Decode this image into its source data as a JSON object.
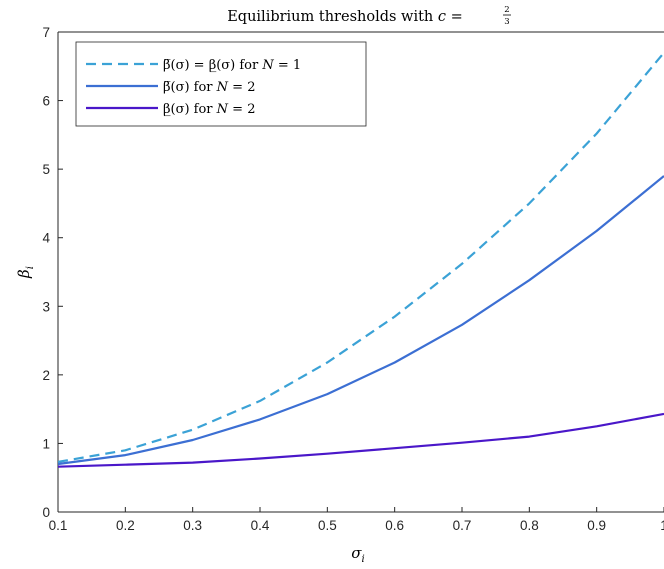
{
  "chart_data": {
    "type": "line",
    "title": "Equilibrium thresholds with c = 2/3",
    "title_parts": {
      "prefix": "Equilibrium thresholds with ",
      "var": "c",
      "eq": " = ",
      "num": "2",
      "den": "3"
    },
    "xlabel": {
      "base": "σ",
      "sub": "i"
    },
    "ylabel": {
      "base": "β",
      "sub": "i"
    },
    "xlim": [
      0.1,
      1.0
    ],
    "ylim": [
      0,
      7
    ],
    "xticks": [
      "0.1",
      "0.2",
      "0.3",
      "0.4",
      "0.5",
      "0.6",
      "0.7",
      "0.8",
      "0.9",
      "1"
    ],
    "yticks": [
      "0",
      "1",
      "2",
      "3",
      "4",
      "5",
      "6",
      "7"
    ],
    "grid": false,
    "legend_position": "top-left",
    "x": [
      0.1,
      0.2,
      0.3,
      0.4,
      0.5,
      0.6,
      0.7,
      0.8,
      0.9,
      1.0
    ],
    "series": [
      {
        "legend": [
          "β̅(σ) = β̲(σ) for ",
          "N",
          " = 1"
        ],
        "color": "#3ba2d6",
        "dash": true,
        "values": [
          0.73,
          0.9,
          1.2,
          1.62,
          2.18,
          2.85,
          3.62,
          4.5,
          5.52,
          6.7
        ]
      },
      {
        "legend": [
          "β̅(σ) for ",
          "N",
          " = 2"
        ],
        "color": "#3c6fd3",
        "dash": false,
        "values": [
          0.7,
          0.83,
          1.05,
          1.35,
          1.72,
          2.18,
          2.73,
          3.38,
          4.1,
          4.9
        ]
      },
      {
        "legend": [
          "β̲(σ) for ",
          "N",
          " = 2"
        ],
        "color": "#4a17c9",
        "dash": false,
        "values": [
          0.66,
          0.69,
          0.72,
          0.78,
          0.85,
          0.93,
          1.01,
          1.1,
          1.25,
          1.43
        ]
      }
    ]
  }
}
